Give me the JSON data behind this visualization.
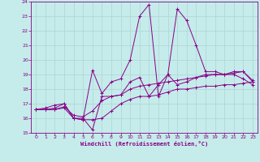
{
  "xlabel": "Windchill (Refroidissement éolien,°C)",
  "ylabel": "",
  "xlim": [
    -0.5,
    23.5
  ],
  "ylim": [
    15,
    24
  ],
  "xticks": [
    0,
    1,
    2,
    3,
    4,
    5,
    6,
    7,
    8,
    9,
    10,
    11,
    12,
    13,
    14,
    15,
    16,
    17,
    18,
    19,
    20,
    21,
    22,
    23
  ],
  "yticks": [
    15,
    16,
    17,
    18,
    19,
    20,
    21,
    22,
    23,
    24
  ],
  "background_color": "#c5ecea",
  "grid_color": "#b0d8d8",
  "line_color": "#880088",
  "series": [
    {
      "x": [
        0,
        1,
        2,
        3,
        4,
        5,
        6,
        7,
        8,
        9,
        10,
        11,
        12,
        13,
        14,
        15,
        16,
        17,
        18,
        19,
        20,
        21,
        22,
        23
      ],
      "y": [
        16.6,
        16.6,
        16.7,
        17.0,
        16.0,
        15.9,
        19.3,
        17.7,
        18.5,
        18.7,
        20.0,
        23.0,
        23.8,
        17.5,
        19.0,
        23.5,
        22.7,
        21.0,
        19.2,
        19.2,
        19.0,
        19.0,
        18.7,
        18.3
      ]
    },
    {
      "x": [
        0,
        1,
        2,
        3,
        4,
        5,
        6,
        7,
        8,
        9,
        10,
        11,
        12,
        13,
        14,
        15,
        16,
        17,
        18,
        19,
        20,
        21,
        22,
        23
      ],
      "y": [
        16.6,
        16.7,
        16.9,
        17.0,
        16.0,
        16.0,
        15.2,
        17.5,
        17.5,
        17.6,
        18.5,
        18.8,
        17.5,
        18.3,
        19.0,
        18.3,
        18.5,
        18.8,
        19.0,
        19.0,
        19.0,
        19.2,
        19.2,
        18.5
      ]
    },
    {
      "x": [
        0,
        1,
        2,
        3,
        4,
        5,
        6,
        7,
        8,
        9,
        10,
        11,
        12,
        13,
        14,
        15,
        16,
        17,
        18,
        19,
        20,
        21,
        22,
        23
      ],
      "y": [
        16.6,
        16.6,
        16.6,
        16.8,
        16.2,
        16.1,
        16.5,
        17.2,
        17.5,
        17.6,
        18.0,
        18.2,
        18.3,
        18.4,
        18.5,
        18.6,
        18.7,
        18.8,
        18.9,
        19.0,
        19.0,
        19.1,
        19.2,
        18.6
      ]
    },
    {
      "x": [
        0,
        1,
        2,
        3,
        4,
        5,
        6,
        7,
        8,
        9,
        10,
        11,
        12,
        13,
        14,
        15,
        16,
        17,
        18,
        19,
        20,
        21,
        22,
        23
      ],
      "y": [
        16.6,
        16.6,
        16.6,
        16.7,
        16.0,
        15.9,
        15.9,
        16.0,
        16.5,
        17.0,
        17.3,
        17.5,
        17.5,
        17.6,
        17.8,
        18.0,
        18.0,
        18.1,
        18.2,
        18.2,
        18.3,
        18.3,
        18.4,
        18.5
      ]
    }
  ]
}
